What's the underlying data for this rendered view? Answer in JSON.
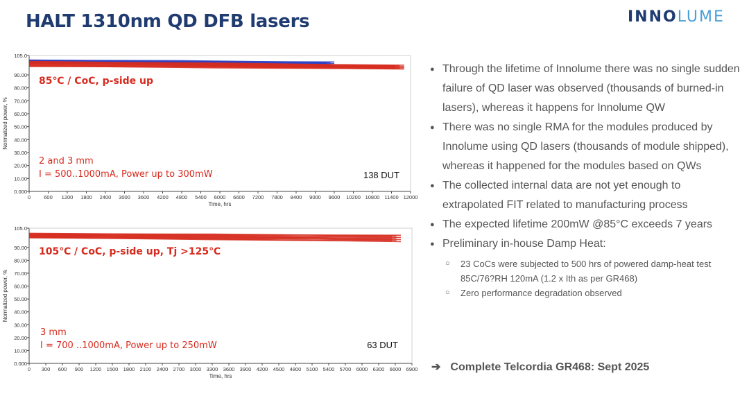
{
  "slide": {
    "title": "HALT 1310nm QD DFB lasers",
    "logo": {
      "part1": "INNO",
      "part2": "LUME"
    },
    "footer": {
      "arrow": "➔",
      "text": "Complete Telcordia GR468: Sept 2025"
    }
  },
  "bullets": [
    {
      "level": 1,
      "text": "Through the lifetime of Innolume there was no single sudden failure of QD laser was observed (thousands of burned-in lasers), whereas it happens for Innolume QW"
    },
    {
      "level": 1,
      "text": "There was no single RMA for the modules produced by Innolume using QD lasers (thousands of module shipped), whereas it happened for the modules based on QWs"
    },
    {
      "level": 1,
      "text": "The collected internal data are not yet enough to extrapolated FIT related to manufacturing process"
    },
    {
      "level": 1,
      "text": "The expected lifetime 200mW @85°C exceeds 7 years"
    },
    {
      "level": 1,
      "text": "Preliminary in-house Damp Heat:"
    },
    {
      "level": 2,
      "text": "23 CoCs were subjected to 500 hrs of powered damp-heat test 85C/76?RH 120mA (1.2 x Ith as per GR468)"
    },
    {
      "level": 2,
      "text": "Zero performance degradation observed"
    }
  ],
  "chart_data": [
    {
      "type": "line",
      "title": "",
      "xlabel": "Time, hrs",
      "ylabel": "Normalized power, %",
      "xlim": [
        0,
        12000
      ],
      "ylim": [
        0,
        105
      ],
      "xticks": [
        0,
        600,
        1200,
        1800,
        2400,
        3000,
        3600,
        4200,
        4800,
        5400,
        6000,
        6600,
        7200,
        7800,
        8400,
        9000,
        9600,
        10200,
        10800,
        11400,
        12000
      ],
      "yticks": [
        0,
        10,
        20,
        30,
        40,
        50,
        60,
        70,
        80,
        90,
        105
      ],
      "ytick_labels": [
        "0.000",
        "10.00",
        "20.00",
        "30.00",
        "40.00",
        "50.00",
        "60.00",
        "70.00",
        "80.00",
        "90.00",
        "105.0"
      ],
      "annotations": [
        "85℃ / CoC, p-side up",
        "2 and 3 mm",
        "I = 500..1000mA, Power up to 300mW"
      ],
      "dut_label": "138 DUT",
      "series": [
        {
          "name": "blue devices",
          "color": "#2b3fc4",
          "x": [
            0,
            9600
          ],
          "y_max": [
            101.5,
            100.0
          ],
          "y_min": [
            99.0,
            96.5
          ]
        },
        {
          "name": "red devices",
          "color": "#d62b1f",
          "x": [
            0,
            11800
          ],
          "y_max": [
            100.5,
            97.5
          ],
          "y_min": [
            96.5,
            94.5
          ]
        }
      ]
    },
    {
      "type": "line",
      "title": "",
      "xlabel": "Time, hrs",
      "ylabel": "Normalized power, %",
      "xlim": [
        0,
        6900
      ],
      "ylim": [
        0,
        105
      ],
      "xticks": [
        0,
        300,
        600,
        900,
        1200,
        1500,
        1800,
        2100,
        2400,
        2700,
        3000,
        3300,
        3600,
        3900,
        4200,
        4500,
        4800,
        5100,
        5400,
        5700,
        6000,
        6300,
        6600,
        6900
      ],
      "yticks": [
        0,
        10,
        20,
        30,
        40,
        50,
        60,
        70,
        80,
        90,
        105
      ],
      "ytick_labels": [
        "0.000",
        "10.00",
        "20.00",
        "30.00",
        "40.00",
        "50.00",
        "60.00",
        "70.00",
        "80.00",
        "90.00",
        "105.0"
      ],
      "annotations": [
        "105℃ / CoC, p-side up, Tj >125℃",
        "3 mm",
        "I = 700 ..1000mA, Power up to 250mW"
      ],
      "dut_label": "63 DUT",
      "series": [
        {
          "name": "red devices",
          "color": "#d62b1f",
          "x": [
            0,
            6700
          ],
          "y_max": [
            101.0,
            99.5
          ],
          "y_min": [
            97.5,
            94.5
          ]
        }
      ]
    }
  ],
  "colors": {
    "title": "#1f3b70",
    "annotation": "#d62b1f",
    "bullet_text": "#555555"
  }
}
